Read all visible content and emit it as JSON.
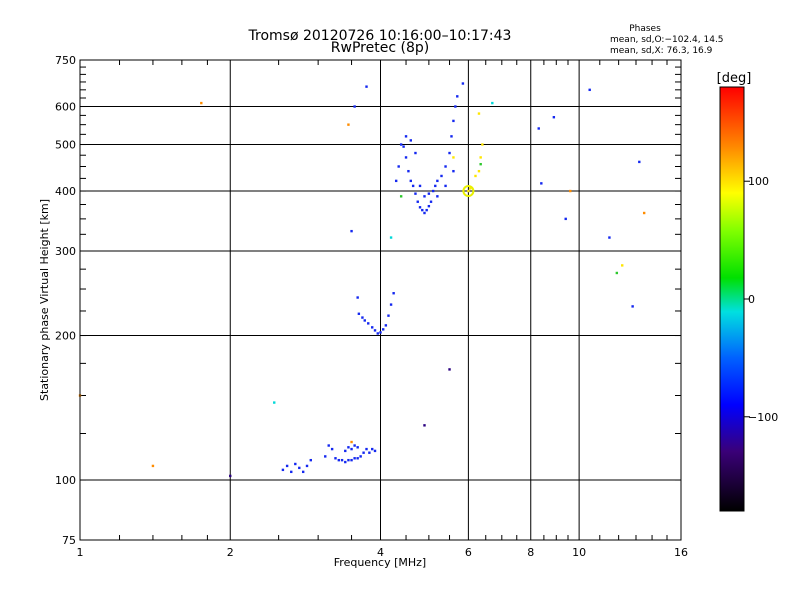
{
  "chart_data": {
    "type": "scatter",
    "title": "Tromsø 20120726 10:16:00–10:17:43",
    "subtitle": "RwPretec (8p)",
    "xlabel": "Frequency [MHz]",
    "ylabel": "Stationary phase Virtual Height [km]",
    "x_scale": "log",
    "y_scale": "log",
    "xlim": [
      1,
      16
    ],
    "ylim": [
      75,
      750
    ],
    "x_ticks": [
      "1",
      "2",
      "4",
      "6",
      "8",
      "10",
      "16"
    ],
    "x_tick_values": [
      1,
      2,
      4,
      6,
      8,
      10,
      16
    ],
    "y_ticks": [
      "75",
      "100",
      "200",
      "300",
      "400",
      "500",
      "600",
      "750"
    ],
    "y_tick_values": [
      75,
      100,
      200,
      300,
      400,
      500,
      600,
      750
    ],
    "x_grid": [
      2,
      4,
      6,
      8,
      10
    ],
    "y_grid": [
      100,
      200,
      300,
      400,
      500,
      600
    ],
    "stats": {
      "title": "Phases",
      "line_o": "mean, sd,O:−102.4, 14.5",
      "line_x": "mean, sd,X:  76.3, 16.9"
    },
    "colorbar": {
      "label": "[deg]",
      "ticks": [
        "100",
        "0",
        "−100"
      ],
      "tick_values": [
        100,
        0,
        -100
      ],
      "range": [
        -180,
        180
      ]
    },
    "series": [
      {
        "color": "#1428f0",
        "points": [
          [
            2.55,
            105
          ],
          [
            2.6,
            107
          ],
          [
            2.65,
            104
          ],
          [
            2.7,
            108
          ],
          [
            2.75,
            106
          ],
          [
            2.8,
            104
          ],
          [
            2.85,
            107
          ],
          [
            2.9,
            110
          ],
          [
            3.1,
            112
          ],
          [
            3.15,
            118
          ],
          [
            3.2,
            116
          ],
          [
            3.25,
            111
          ],
          [
            3.3,
            110
          ],
          [
            3.35,
            110
          ],
          [
            3.4,
            109
          ],
          [
            3.45,
            110
          ],
          [
            3.5,
            110
          ],
          [
            3.55,
            111
          ],
          [
            3.6,
            111
          ],
          [
            3.65,
            112
          ],
          [
            3.7,
            114
          ],
          [
            3.75,
            116
          ],
          [
            3.8,
            114
          ],
          [
            3.85,
            116
          ],
          [
            3.9,
            115
          ],
          [
            3.4,
            115
          ],
          [
            3.45,
            117
          ],
          [
            3.5,
            116
          ],
          [
            3.55,
            118
          ],
          [
            3.6,
            117
          ],
          [
            3.5,
            330
          ],
          [
            3.6,
            240
          ],
          [
            3.62,
            222
          ],
          [
            3.68,
            218
          ],
          [
            3.72,
            215
          ],
          [
            3.78,
            212
          ],
          [
            3.85,
            208
          ],
          [
            3.9,
            205
          ],
          [
            3.95,
            202
          ],
          [
            4.0,
            203
          ],
          [
            4.05,
            206
          ],
          [
            4.1,
            210
          ],
          [
            4.15,
            220
          ],
          [
            4.2,
            232
          ],
          [
            4.25,
            245
          ],
          [
            4.3,
            420
          ],
          [
            4.35,
            450
          ],
          [
            4.4,
            500
          ],
          [
            4.45,
            495
          ],
          [
            4.5,
            470
          ],
          [
            4.55,
            440
          ],
          [
            4.6,
            420
          ],
          [
            4.65,
            410
          ],
          [
            4.7,
            395
          ],
          [
            4.75,
            380
          ],
          [
            4.8,
            370
          ],
          [
            4.85,
            365
          ],
          [
            4.9,
            360
          ],
          [
            4.95,
            365
          ],
          [
            5.0,
            372
          ],
          [
            5.05,
            380
          ],
          [
            5.1,
            400
          ],
          [
            5.15,
            410
          ],
          [
            5.2,
            420
          ],
          [
            5.3,
            430
          ],
          [
            5.4,
            450
          ],
          [
            5.5,
            480
          ],
          [
            5.55,
            520
          ],
          [
            5.6,
            560
          ],
          [
            5.65,
            600
          ],
          [
            5.7,
            630
          ],
          [
            4.5,
            520
          ],
          [
            4.6,
            510
          ],
          [
            4.7,
            480
          ],
          [
            4.8,
            410
          ],
          [
            4.9,
            390
          ],
          [
            5.0,
            395
          ],
          [
            5.2,
            390
          ],
          [
            5.4,
            410
          ],
          [
            5.6,
            440
          ],
          [
            3.55,
            600
          ],
          [
            3.75,
            660
          ],
          [
            5.85,
            670
          ],
          [
            8.3,
            540
          ],
          [
            8.4,
            415
          ],
          [
            8.9,
            570
          ],
          [
            9.4,
            350
          ],
          [
            10.5,
            650
          ],
          [
            11.5,
            320
          ],
          [
            12.8,
            230
          ],
          [
            13.2,
            460
          ]
        ]
      },
      {
        "color": "#ffe600",
        "points": [
          [
            6.0,
            400
          ],
          [
            6.05,
            405
          ],
          [
            6.2,
            430
          ],
          [
            6.3,
            440
          ],
          [
            6.35,
            470
          ],
          [
            6.4,
            500
          ],
          [
            6.3,
            580
          ],
          [
            5.6,
            470
          ],
          [
            12.2,
            280
          ]
        ]
      },
      {
        "color": "#ff8c00",
        "points": [
          [
            1.0,
            150
          ],
          [
            1.4,
            107
          ],
          [
            1.75,
            610
          ],
          [
            3.45,
            550
          ],
          [
            3.5,
            120
          ],
          [
            9.6,
            400
          ],
          [
            13.5,
            360
          ]
        ]
      },
      {
        "color": "#00d8d8",
        "points": [
          [
            2.45,
            145
          ],
          [
            4.2,
            320
          ],
          [
            6.7,
            610
          ]
        ]
      },
      {
        "color": "#2a0080",
        "points": [
          [
            2.0,
            102
          ],
          [
            4.9,
            130
          ],
          [
            5.5,
            170
          ]
        ]
      },
      {
        "color": "#2dc82d",
        "points": [
          [
            4.4,
            390
          ],
          [
            6.35,
            455
          ],
          [
            11.9,
            270
          ]
        ]
      }
    ]
  }
}
